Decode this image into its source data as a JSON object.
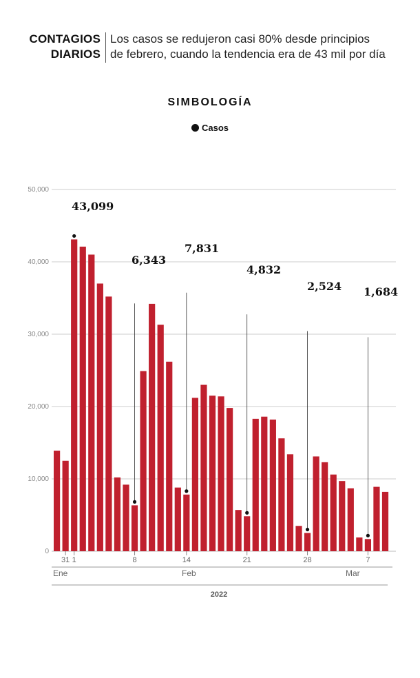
{
  "header": {
    "title_line1": "CONTAGIOS",
    "title_line2": "DIARIOS",
    "subtitle_line1": "Los casos se redujeron casi 80% desde principios",
    "subtitle_line2": "de febrero, cuando la tendencia era de 43 mil por día"
  },
  "legend": {
    "title": "SIMBOLOGÍA",
    "item": "Casos"
  },
  "colors": {
    "bar": "#C0202E",
    "marker": "#111111",
    "grid": "#cccccc"
  },
  "chart_data": {
    "type": "bar",
    "ylim": [
      0,
      50000
    ],
    "yticks": [
      {
        "value": 0,
        "label": "0"
      },
      {
        "value": 10000,
        "label": "10,000"
      },
      {
        "value": 20000,
        "label": "20,000"
      },
      {
        "value": 30000,
        "label": "30,000"
      },
      {
        "value": 40000,
        "label": "40,000"
      },
      {
        "value": 50000,
        "label": "50,000"
      }
    ],
    "values": [
      13900,
      12500,
      43099,
      42100,
      41000,
      37000,
      35200,
      10200,
      9200,
      6343,
      24900,
      34200,
      31300,
      26200,
      8800,
      7831,
      21200,
      23000,
      21500,
      21400,
      19800,
      5700,
      4832,
      18300,
      18600,
      18200,
      15600,
      13400,
      3500,
      2524,
      13100,
      12300,
      10600,
      9700,
      8700,
      1900,
      1684,
      8900,
      8200
    ],
    "x_tick_labels": [
      {
        "index": 1,
        "label": "31"
      },
      {
        "index": 2,
        "label": "1"
      },
      {
        "index": 9,
        "label": "8"
      },
      {
        "index": 15,
        "label": "14"
      },
      {
        "index": 22,
        "label": "21"
      },
      {
        "index": 29,
        "label": "28"
      },
      {
        "index": 36,
        "label": "7"
      }
    ],
    "months": [
      {
        "label": "Ene",
        "start": 0,
        "end": 1
      },
      {
        "label": "Feb",
        "start": 2,
        "end": 29
      },
      {
        "label": "Mar",
        "start": 30,
        "end": 38
      }
    ],
    "year_label": "2022",
    "annotations": [
      {
        "index": 2,
        "label": "43,099"
      },
      {
        "index": 9,
        "label": "6,343"
      },
      {
        "index": 15,
        "label": "7,831"
      },
      {
        "index": 22,
        "label": "4,832"
      },
      {
        "index": 29,
        "label": "2,524"
      },
      {
        "index": 36,
        "label": "1,684"
      }
    ]
  }
}
